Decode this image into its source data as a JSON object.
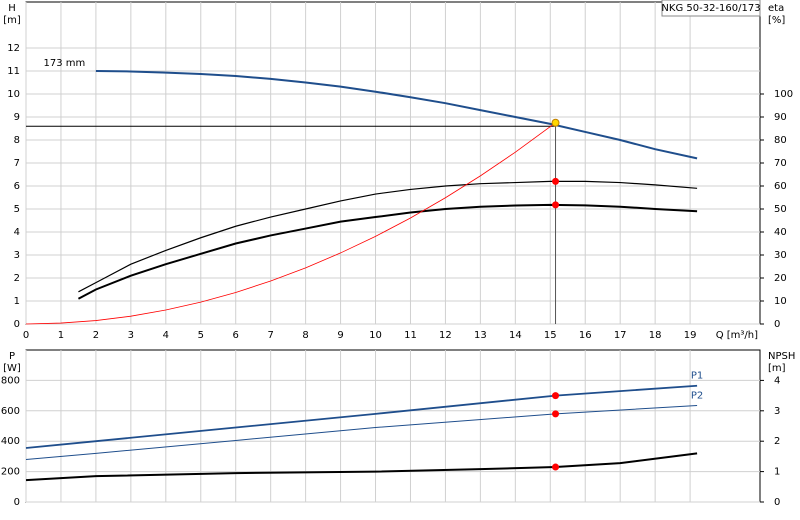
{
  "chart_data": [
    {
      "type": "line",
      "title": "NKG 50-32-160/173",
      "annotation": "173 mm",
      "ylabel": "H",
      "yunit": "[m]",
      "y2label": "eta",
      "y2unit": "[%]",
      "xlabel": "Q [m³/h]",
      "xlim": [
        0,
        21
      ],
      "xticks": [
        0,
        1,
        2,
        3,
        4,
        5,
        6,
        7,
        8,
        9,
        10,
        11,
        12,
        13,
        14,
        15,
        16,
        17,
        18,
        19
      ],
      "ylim": [
        0,
        14
      ],
      "yticks": [
        0,
        1,
        2,
        3,
        4,
        5,
        6,
        7,
        8,
        9,
        10,
        11,
        12
      ],
      "y2lim": [
        0,
        140
      ],
      "y2ticks": [
        0,
        10,
        20,
        30,
        40,
        50,
        60,
        70,
        80,
        90,
        100
      ],
      "grid": true,
      "series": [
        {
          "color": "#1f4e8c",
          "width": 2,
          "x": [
            2,
            3,
            4,
            5,
            6,
            7,
            8,
            9,
            10,
            11,
            12,
            13,
            14,
            15,
            16,
            17,
            18,
            19.2
          ],
          "values": [
            11.0,
            10.98,
            10.93,
            10.87,
            10.78,
            10.66,
            10.5,
            10.32,
            10.1,
            9.86,
            9.6,
            9.3,
            9.0,
            8.7,
            8.35,
            8.0,
            7.6,
            7.2
          ]
        },
        {
          "color": "#000000",
          "width": 1.2,
          "axis": "y2",
          "x": [
            1.5,
            2,
            3,
            4,
            5,
            6,
            7,
            8,
            9,
            10,
            11,
            12,
            13,
            14,
            15,
            16,
            17,
            18,
            19.2
          ],
          "values": [
            14,
            18,
            26,
            32,
            37.5,
            42.5,
            46.5,
            50,
            53.5,
            56.5,
            58.5,
            60,
            61,
            61.5,
            62,
            62,
            61.5,
            60.5,
            59
          ]
        },
        {
          "color": "#000000",
          "width": 2,
          "axis": "y2",
          "x": [
            1.5,
            2,
            3,
            4,
            5,
            6,
            7,
            8,
            9,
            10,
            11,
            12,
            13,
            14,
            15,
            16,
            17,
            18,
            19.2
          ],
          "values": [
            11,
            15,
            21,
            26,
            30.5,
            35,
            38.5,
            41.5,
            44.5,
            46.5,
            48.5,
            50,
            51,
            51.5,
            51.8,
            51.6,
            51,
            50,
            49
          ]
        },
        {
          "color": "#ff0000",
          "width": 0.8,
          "x": [
            0,
            1,
            2,
            3,
            4,
            5,
            6,
            7,
            8,
            9,
            10,
            11,
            12,
            13,
            14,
            15.15
          ],
          "values": [
            0,
            0.04,
            0.15,
            0.34,
            0.61,
            0.95,
            1.37,
            1.87,
            2.44,
            3.09,
            3.81,
            4.61,
            5.49,
            6.44,
            7.47,
            8.75
          ]
        }
      ],
      "duty_lines": {
        "x": 15.15,
        "y": 8.6
      },
      "points": [
        {
          "x": 15.15,
          "y": 8.75,
          "color": "#ffd700"
        },
        {
          "x": 15.15,
          "y": 62,
          "axis": "y2",
          "color": "#ff0000"
        },
        {
          "x": 15.15,
          "y": 51.8,
          "axis": "y2",
          "color": "#ff0000"
        }
      ]
    },
    {
      "type": "line",
      "ylabel": "P",
      "yunit": "[W]",
      "y2label": "NPSH",
      "y2unit": "[m]",
      "xlim": [
        0,
        21
      ],
      "xticks": [
        0,
        1,
        2,
        3,
        4,
        5,
        6,
        7,
        8,
        9,
        10,
        11,
        12,
        13,
        14,
        15,
        16,
        17,
        18,
        19
      ],
      "ylim": [
        0,
        1000
      ],
      "yticks": [
        0,
        200,
        400,
        600,
        800
      ],
      "y2lim": [
        0,
        5
      ],
      "y2ticks": [
        0,
        1,
        2,
        3,
        4
      ],
      "grid": true,
      "series": [
        {
          "name": "P1",
          "color": "#1f4e8c",
          "width": 1.8,
          "x": [
            0,
            2,
            6,
            10,
            15.15,
            19.2
          ],
          "values": [
            355,
            400,
            490,
            580,
            700,
            765
          ]
        },
        {
          "name": "P2",
          "color": "#1f4e8c",
          "width": 1,
          "x": [
            0,
            2,
            6,
            10,
            15.15,
            19.2
          ],
          "values": [
            280,
            320,
            405,
            490,
            580,
            635
          ]
        },
        {
          "color": "#000000",
          "width": 2,
          "axis": "y2",
          "x": [
            0,
            2,
            6,
            10,
            13,
            15.15,
            17,
            19.2
          ],
          "values": [
            0.72,
            0.85,
            0.95,
            1.0,
            1.08,
            1.15,
            1.28,
            1.6
          ]
        }
      ],
      "points": [
        {
          "x": 15.15,
          "y": 700,
          "color": "#ff0000"
        },
        {
          "x": 15.15,
          "y": 580,
          "color": "#ff0000"
        },
        {
          "x": 15.15,
          "y": 1.15,
          "axis": "y2",
          "color": "#ff0000"
        }
      ]
    }
  ]
}
